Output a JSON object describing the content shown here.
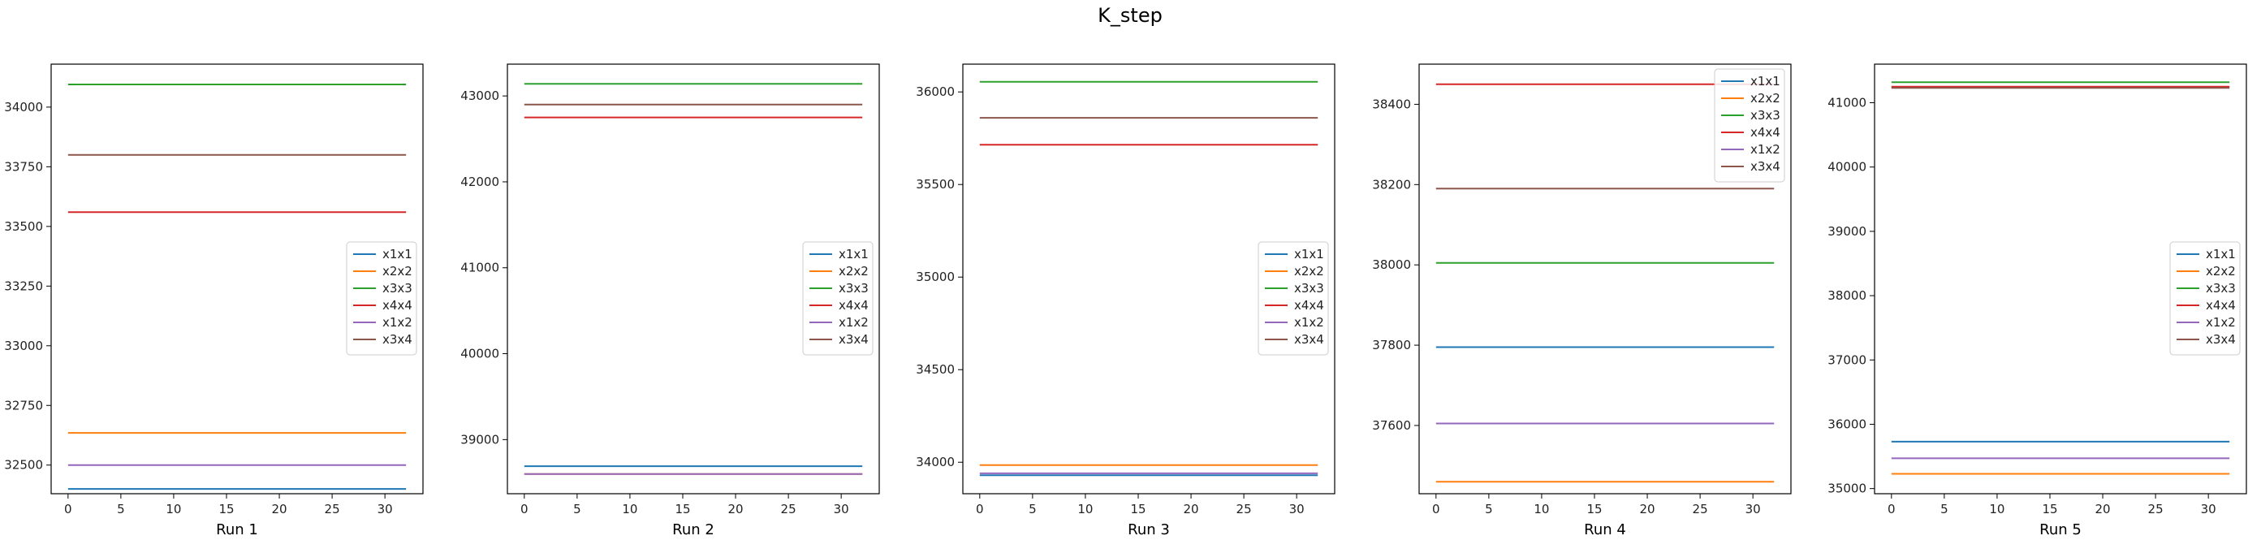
{
  "figure": {
    "title": "K_step"
  },
  "chart_data": [
    {
      "type": "line",
      "xlabel": "Run 1",
      "x": [
        0,
        32
      ],
      "xlim": [
        -1.6,
        33.6
      ],
      "xticks": [
        0,
        5,
        10,
        15,
        20,
        25,
        30
      ],
      "ylim": [
        32380,
        34180
      ],
      "yticks": [
        32500,
        32750,
        33000,
        33250,
        33500,
        33750,
        34000
      ],
      "legend": "center-right",
      "series": [
        {
          "name": "x1x1",
          "values": [
            32400,
            32400
          ],
          "color": "#1f77b4"
        },
        {
          "name": "x2x2",
          "values": [
            32635,
            32635
          ],
          "color": "#ff7f0e"
        },
        {
          "name": "x3x3",
          "values": [
            34095,
            34095
          ],
          "color": "#2ca02c"
        },
        {
          "name": "x4x4",
          "values": [
            33560,
            33560
          ],
          "color": "#d62728"
        },
        {
          "name": "x1x2",
          "values": [
            32500,
            32500
          ],
          "color": "#9467bd"
        },
        {
          "name": "x3x4",
          "values": [
            33800,
            33800
          ],
          "color": "#8c564b"
        }
      ]
    },
    {
      "type": "line",
      "xlabel": "Run 2",
      "x": [
        0,
        32
      ],
      "xlim": [
        -1.6,
        33.6
      ],
      "xticks": [
        0,
        5,
        10,
        15,
        20,
        25,
        30
      ],
      "ylim": [
        38370,
        43370
      ],
      "yticks": [
        39000,
        40000,
        41000,
        42000,
        43000
      ],
      "legend": "center-right",
      "series": [
        {
          "name": "x1x1",
          "values": [
            38690,
            38690
          ],
          "color": "#1f77b4"
        },
        {
          "name": "x2x2",
          "values": [
            38600,
            38600
          ],
          "color": "#ff7f0e"
        },
        {
          "name": "x3x3",
          "values": [
            43140,
            43140
          ],
          "color": "#2ca02c"
        },
        {
          "name": "x4x4",
          "values": [
            42750,
            42750
          ],
          "color": "#d62728"
        },
        {
          "name": "x1x2",
          "values": [
            38600,
            38600
          ],
          "color": "#9467bd"
        },
        {
          "name": "x3x4",
          "values": [
            42900,
            42900
          ],
          "color": "#8c564b"
        }
      ]
    },
    {
      "type": "line",
      "xlabel": "Run 3",
      "x": [
        0,
        32
      ],
      "xlim": [
        -1.6,
        33.6
      ],
      "xticks": [
        0,
        5,
        10,
        15,
        20,
        25,
        30
      ],
      "ylim": [
        33830,
        36150
      ],
      "yticks": [
        34000,
        34500,
        35000,
        35500,
        36000
      ],
      "legend": "center-right",
      "series": [
        {
          "name": "x1x1",
          "values": [
            33930,
            33930
          ],
          "color": "#1f77b4"
        },
        {
          "name": "x2x2",
          "values": [
            33985,
            33985
          ],
          "color": "#ff7f0e"
        },
        {
          "name": "x3x3",
          "values": [
            36055,
            36055
          ],
          "color": "#2ca02c"
        },
        {
          "name": "x4x4",
          "values": [
            35715,
            35715
          ],
          "color": "#d62728"
        },
        {
          "name": "x1x2",
          "values": [
            33940,
            33940
          ],
          "color": "#9467bd"
        },
        {
          "name": "x3x4",
          "values": [
            35860,
            35860
          ],
          "color": "#8c564b"
        }
      ]
    },
    {
      "type": "line",
      "xlabel": "Run 4",
      "x": [
        0,
        32
      ],
      "xlim": [
        -1.6,
        33.6
      ],
      "xticks": [
        0,
        5,
        10,
        15,
        20,
        25,
        30
      ],
      "ylim": [
        37430,
        38500
      ],
      "yticks": [
        37600,
        37800,
        38000,
        38200,
        38400
      ],
      "legend": "upper-right",
      "series": [
        {
          "name": "x1x1",
          "values": [
            37795,
            37795
          ],
          "color": "#1f77b4"
        },
        {
          "name": "x2x2",
          "values": [
            37460,
            37460
          ],
          "color": "#ff7f0e"
        },
        {
          "name": "x3x3",
          "values": [
            38005,
            38005
          ],
          "color": "#2ca02c"
        },
        {
          "name": "x4x4",
          "values": [
            38450,
            38450
          ],
          "color": "#d62728"
        },
        {
          "name": "x1x2",
          "values": [
            37605,
            37605
          ],
          "color": "#9467bd"
        },
        {
          "name": "x3x4",
          "values": [
            38190,
            38190
          ],
          "color": "#8c564b"
        }
      ]
    },
    {
      "type": "line",
      "xlabel": "Run 5",
      "x": [
        0,
        32
      ],
      "xlim": [
        -1.6,
        33.6
      ],
      "xticks": [
        0,
        5,
        10,
        15,
        20,
        25,
        30
      ],
      "ylim": [
        34920,
        41600
      ],
      "yticks": [
        35000,
        36000,
        37000,
        38000,
        39000,
        40000,
        41000
      ],
      "legend": "center-right",
      "series": [
        {
          "name": "x1x1",
          "values": [
            35730,
            35730
          ],
          "color": "#1f77b4"
        },
        {
          "name": "x2x2",
          "values": [
            35230,
            35230
          ],
          "color": "#ff7f0e"
        },
        {
          "name": "x3x3",
          "values": [
            41320,
            41320
          ],
          "color": "#2ca02c"
        },
        {
          "name": "x4x4",
          "values": [
            41250,
            41250
          ],
          "color": "#d62728"
        },
        {
          "name": "x1x2",
          "values": [
            35470,
            35470
          ],
          "color": "#9467bd"
        },
        {
          "name": "x3x4",
          "values": [
            41230,
            41230
          ],
          "color": "#8c564b"
        }
      ]
    }
  ]
}
